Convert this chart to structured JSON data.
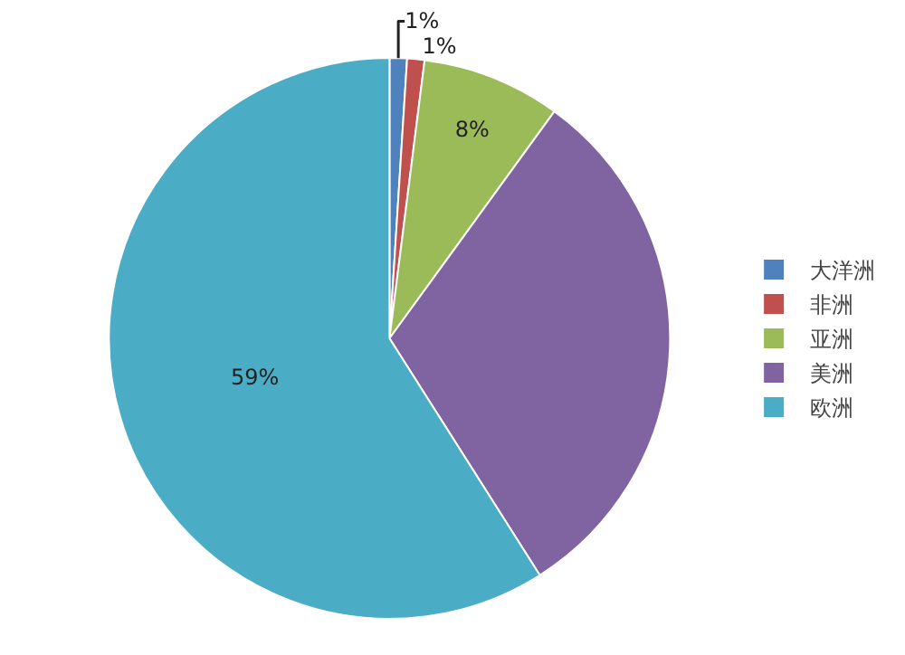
{
  "chart_data": {
    "type": "pie",
    "categories": [
      "大洋洲",
      "非洲",
      "亚洲",
      "美洲",
      "欧洲"
    ],
    "values": [
      1,
      1,
      8,
      31,
      59
    ],
    "colors": [
      "#4f81bd",
      "#c0504d",
      "#9bbb59",
      "#8064a2",
      "#4bacc6"
    ],
    "value_labels": [
      "1%",
      "1%",
      "8%",
      null,
      "59%"
    ],
    "legend": "right"
  }
}
